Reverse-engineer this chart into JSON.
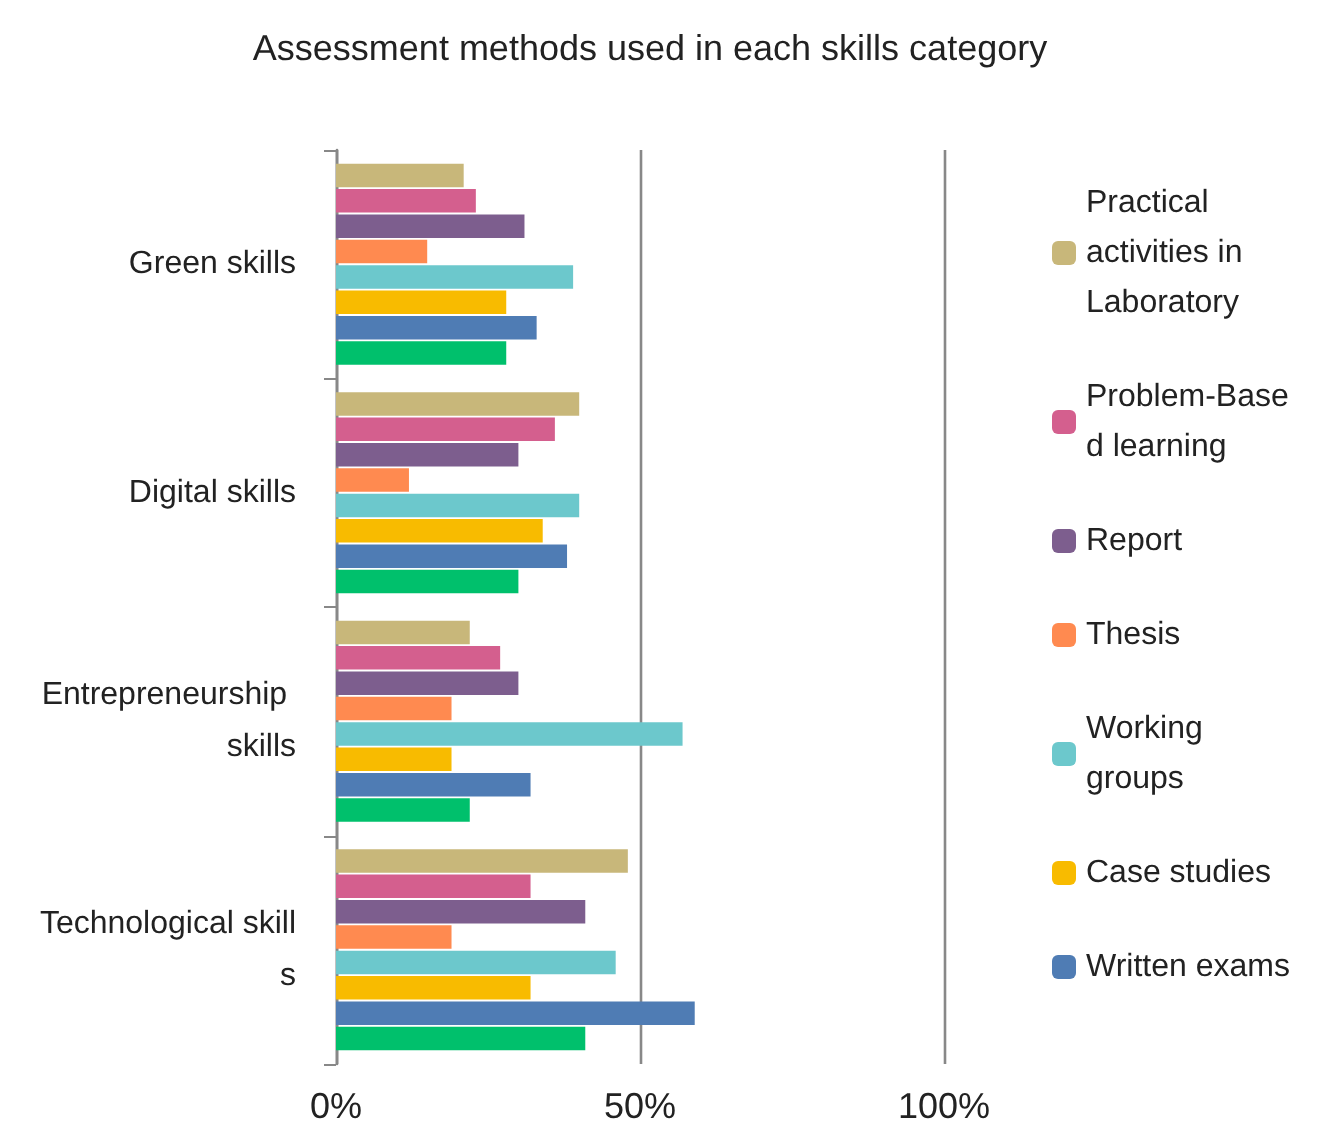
{
  "chart_data": {
    "type": "bar",
    "orientation": "horizontal",
    "title": "Assessment methods used in each skills category",
    "categories": [
      "Green skills",
      "Digital skills",
      "Entrepreneurship skills",
      "Technological skills"
    ],
    "series": [
      {
        "name": "Practical activities in Laboratory",
        "color": "#c8b77a",
        "values": [
          21,
          40,
          22,
          48
        ]
      },
      {
        "name": "Problem-Based learning",
        "color": "#d45f8e",
        "values": [
          23,
          36,
          27,
          32
        ]
      },
      {
        "name": "Report",
        "color": "#7d5e8e",
        "values": [
          31,
          30,
          30,
          41
        ]
      },
      {
        "name": "Thesis",
        "color": "#ff8a50",
        "values": [
          15,
          12,
          19,
          19
        ]
      },
      {
        "name": "Working groups",
        "color": "#6cc8cc",
        "values": [
          39,
          40,
          57,
          46
        ]
      },
      {
        "name": "Case studies",
        "color": "#f8bb00",
        "values": [
          28,
          34,
          19,
          32
        ]
      },
      {
        "name": "Written exams",
        "color": "#4f7cb4",
        "values": [
          33,
          38,
          32,
          59
        ]
      },
      {
        "color": "#00c06c",
        "values": [
          28,
          30,
          22,
          41
        ]
      }
    ],
    "xlim": [
      0,
      100
    ],
    "xticks": [
      {
        "value": 0,
        "label": "0%"
      },
      {
        "value": 50,
        "label": "50%"
      },
      {
        "value": 100,
        "label": "100%"
      }
    ],
    "grid": "x",
    "legend": "right"
  }
}
